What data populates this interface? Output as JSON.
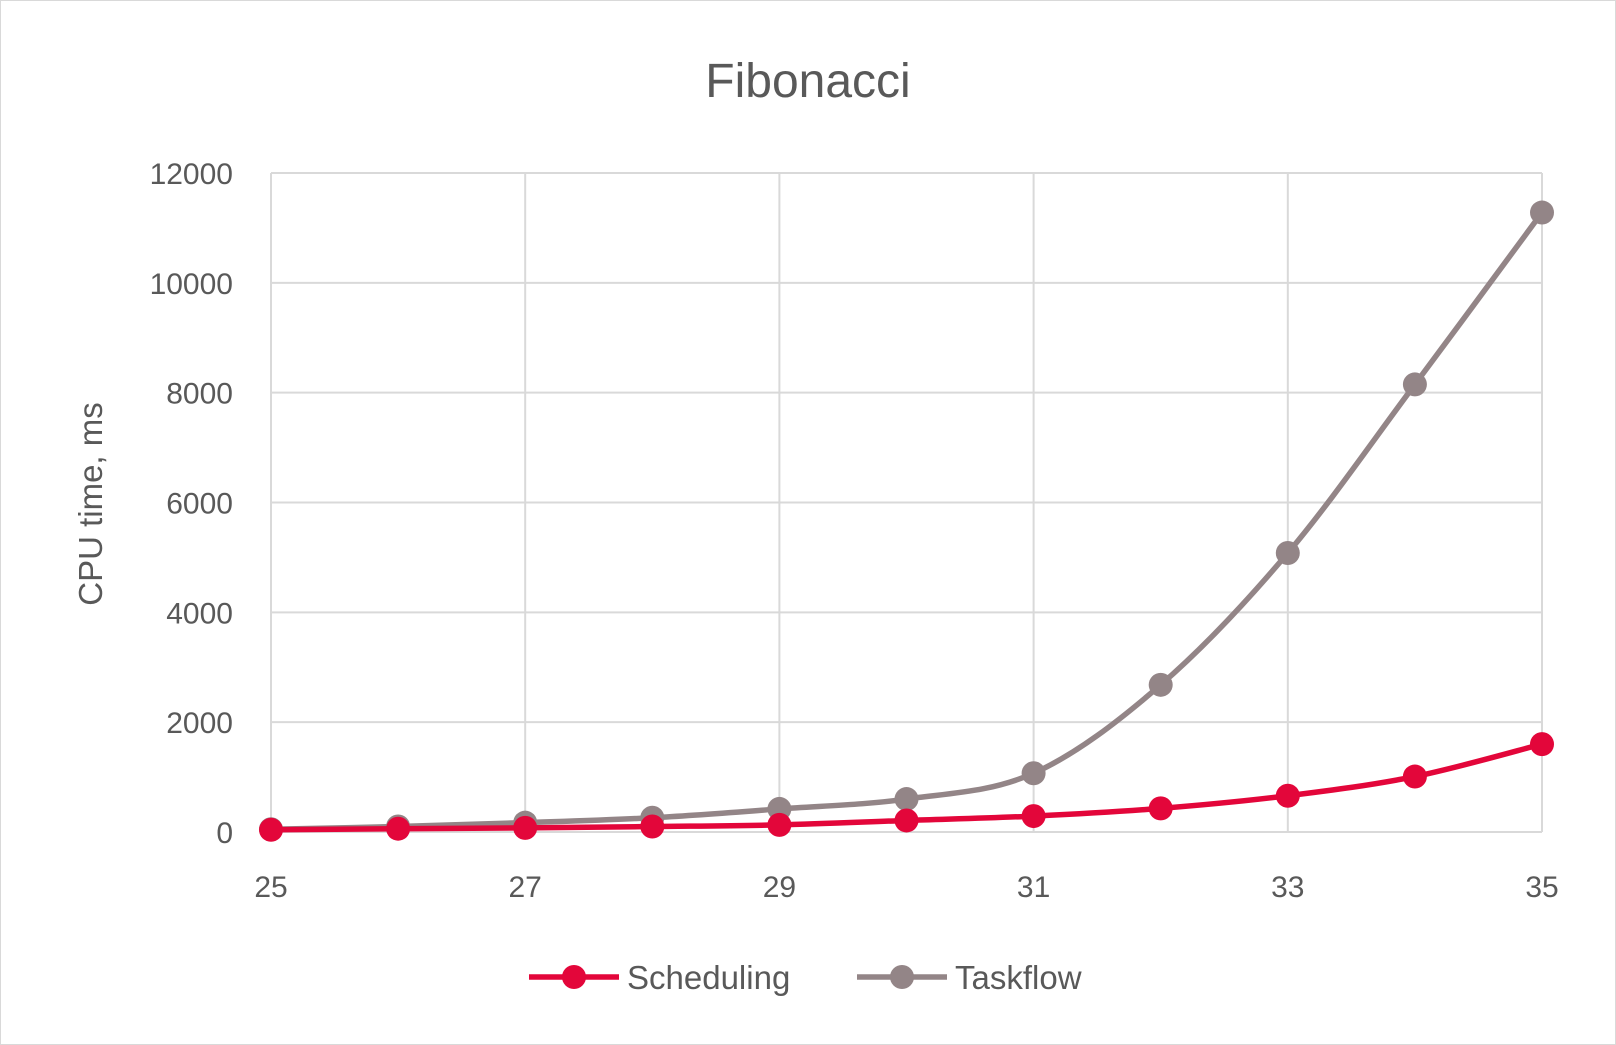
{
  "chart_data": {
    "type": "line",
    "title": "Fibonacci",
    "xlabel": "",
    "ylabel": "CPU time, ms",
    "x": [
      25,
      26,
      27,
      28,
      29,
      30,
      31,
      32,
      33,
      34,
      35
    ],
    "x_ticks": [
      25,
      27,
      29,
      31,
      33,
      35
    ],
    "y_ticks": [
      0,
      2000,
      4000,
      6000,
      8000,
      10000,
      12000
    ],
    "xlim": [
      25,
      35
    ],
    "ylim": [
      0,
      12000
    ],
    "grid": true,
    "legend_position": "bottom",
    "series": [
      {
        "name": "Scheduling",
        "color": "#e3063a",
        "values": [
          40,
          60,
          75,
          100,
          130,
          210,
          290,
          430,
          660,
          1010,
          1600
        ]
      },
      {
        "name": "Taskflow",
        "color": "#938587",
        "values": [
          50,
          100,
          170,
          260,
          420,
          600,
          1070,
          2680,
          5080,
          8150,
          11280
        ]
      }
    ]
  }
}
